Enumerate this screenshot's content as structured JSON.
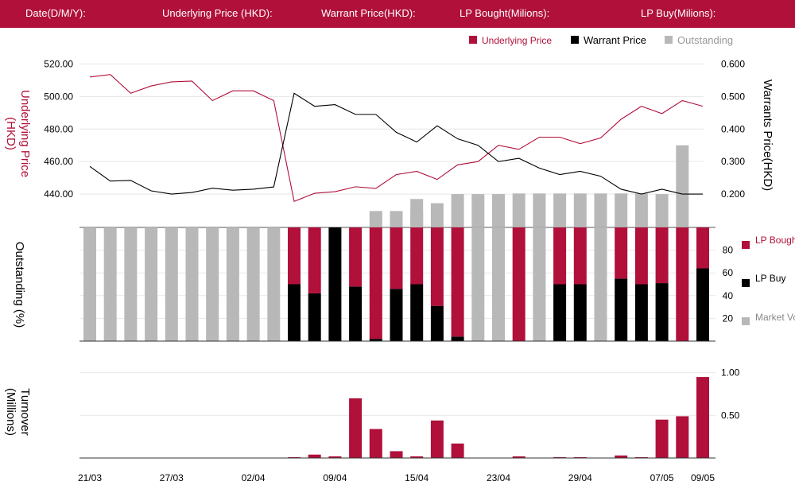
{
  "header": {
    "date_label": "Date(D/M/Y):",
    "underlying_label": "Underlying Price (HKD):",
    "warrant_label": "Warrant  Price(HKD):",
    "lp_bought_label": "LP Bought(Milions):",
    "lp_buy_label": "LP Buy(Milions):"
  },
  "colors": {
    "brand": "#b0103a",
    "underlying": "#b0103a",
    "warrant": "#000000",
    "outstanding": "#b8b8b8",
    "lp_bought": "#b0103a",
    "lp_buy": "#000000",
    "market_volume": "#b8b8b8"
  },
  "chart_data": [
    {
      "type": "line",
      "legend": {
        "underlying": "Underlying Price",
        "warrant": "Warrant  Price",
        "outstanding": "Outstanding"
      },
      "ylabel_left_line1": "Underlying Price",
      "ylabel_left_line2": "(HKD)",
      "ylabel_right": "Warrants  Price(HKD)",
      "yticks_left": [
        "520.00",
        "500.00",
        "480.00",
        "460.00",
        "440.00"
      ],
      "yticks_right": [
        "0.600",
        "0.500",
        "0.400",
        "0.300",
        "0.200"
      ],
      "ylim_left": [
        420,
        530
      ],
      "ylim_right": [
        0.1,
        0.65
      ],
      "series": [
        {
          "name": "Underlying Price",
          "axis": "left",
          "values": [
            512,
            513.5,
            502,
            506.5,
            509,
            509.5,
            497.5,
            503.5,
            503.5,
            497.5,
            435.5,
            440.5,
            441.5,
            444.5,
            443.5,
            452,
            454,
            449,
            458,
            460,
            470,
            467.5,
            475,
            475,
            471,
            474.5,
            486,
            494,
            489.5,
            497.5,
            494
          ]
        },
        {
          "name": "Warrant  Price",
          "axis": "right",
          "values": [
            0.285,
            0.24,
            0.242,
            0.21,
            0.2,
            0.205,
            0.218,
            0.212,
            0.215,
            0.222,
            0.51,
            0.47,
            0.475,
            0.445,
            0.445,
            0.39,
            0.36,
            0.41,
            0.37,
            0.35,
            0.3,
            0.31,
            0.28,
            0.26,
            0.27,
            0.255,
            0.215,
            0.2,
            0.215,
            0.2,
            0.2
          ]
        },
        {
          "name": "Outstanding",
          "axis": "right",
          "type": "bar",
          "values": [
            null,
            null,
            null,
            null,
            null,
            null,
            null,
            null,
            null,
            null,
            null,
            null,
            null,
            null,
            0.148,
            0.148,
            0.15,
            0.172,
            0.2,
            0.2,
            0.2,
            0.202,
            0.202,
            0.202,
            0.202,
            0.202,
            0.202,
            0.202,
            0.2,
            0.35,
            null
          ]
        }
      ]
    },
    {
      "type": "bar",
      "ylabel": "Outstanding (%)",
      "yticks": [
        "80",
        "60",
        "40",
        "20"
      ],
      "ylim": [
        0,
        100
      ],
      "legend": {
        "lp_bought": "LP Bought",
        "lp_buy": "LP Buy",
        "market_volume": "Market Volume"
      },
      "series": [
        {
          "name": "LP Buy",
          "values": [
            0,
            0,
            0,
            0,
            0,
            0,
            0,
            0,
            0,
            0,
            50,
            42,
            100,
            48,
            2,
            46,
            50,
            31,
            4,
            0,
            0,
            0,
            0,
            50,
            50,
            0,
            55,
            50,
            51,
            0,
            64
          ]
        },
        {
          "name": "LP Bought",
          "values": [
            0,
            0,
            0,
            0,
            0,
            0,
            0,
            0,
            0,
            0,
            50,
            58,
            0,
            52,
            98,
            54,
            50,
            69,
            96,
            0,
            0,
            100,
            0,
            50,
            50,
            0,
            45,
            50,
            49,
            100,
            36
          ]
        },
        {
          "name": "Market Volume",
          "values": [
            100,
            100,
            100,
            100,
            100,
            100,
            100,
            100,
            100,
            100,
            0,
            0,
            0,
            0,
            0,
            0,
            25,
            0,
            0,
            100,
            100,
            0,
            100,
            0,
            0,
            100,
            0,
            0,
            0,
            0,
            0
          ]
        }
      ]
    },
    {
      "type": "bar",
      "ylabel_line1": "Turnover",
      "ylabel_line2": "(Millions)",
      "yticks": [
        "1.00",
        "0.50"
      ],
      "ylim": [
        0,
        1.1
      ],
      "series": [
        {
          "name": "Turnover",
          "values": [
            0,
            0,
            0,
            0,
            0,
            0,
            0,
            0,
            0,
            0,
            0.01,
            0.04,
            0.02,
            0.7,
            0.34,
            0.08,
            0.02,
            0.44,
            0.17,
            0,
            0,
            0.02,
            0,
            0.01,
            0.01,
            0,
            0.03,
            0.01,
            0.45,
            0.49,
            0.95
          ]
        }
      ]
    }
  ],
  "x_ticks": [
    {
      "index": 0,
      "label": "21/03"
    },
    {
      "index": 4,
      "label": "27/03"
    },
    {
      "index": 8,
      "label": "02/04"
    },
    {
      "index": 12,
      "label": "09/04"
    },
    {
      "index": 16,
      "label": "15/04"
    },
    {
      "index": 20,
      "label": "23/04"
    },
    {
      "index": 24,
      "label": "29/04"
    },
    {
      "index": 28,
      "label": "07/05"
    },
    {
      "index": 30,
      "label": "09/05"
    }
  ]
}
